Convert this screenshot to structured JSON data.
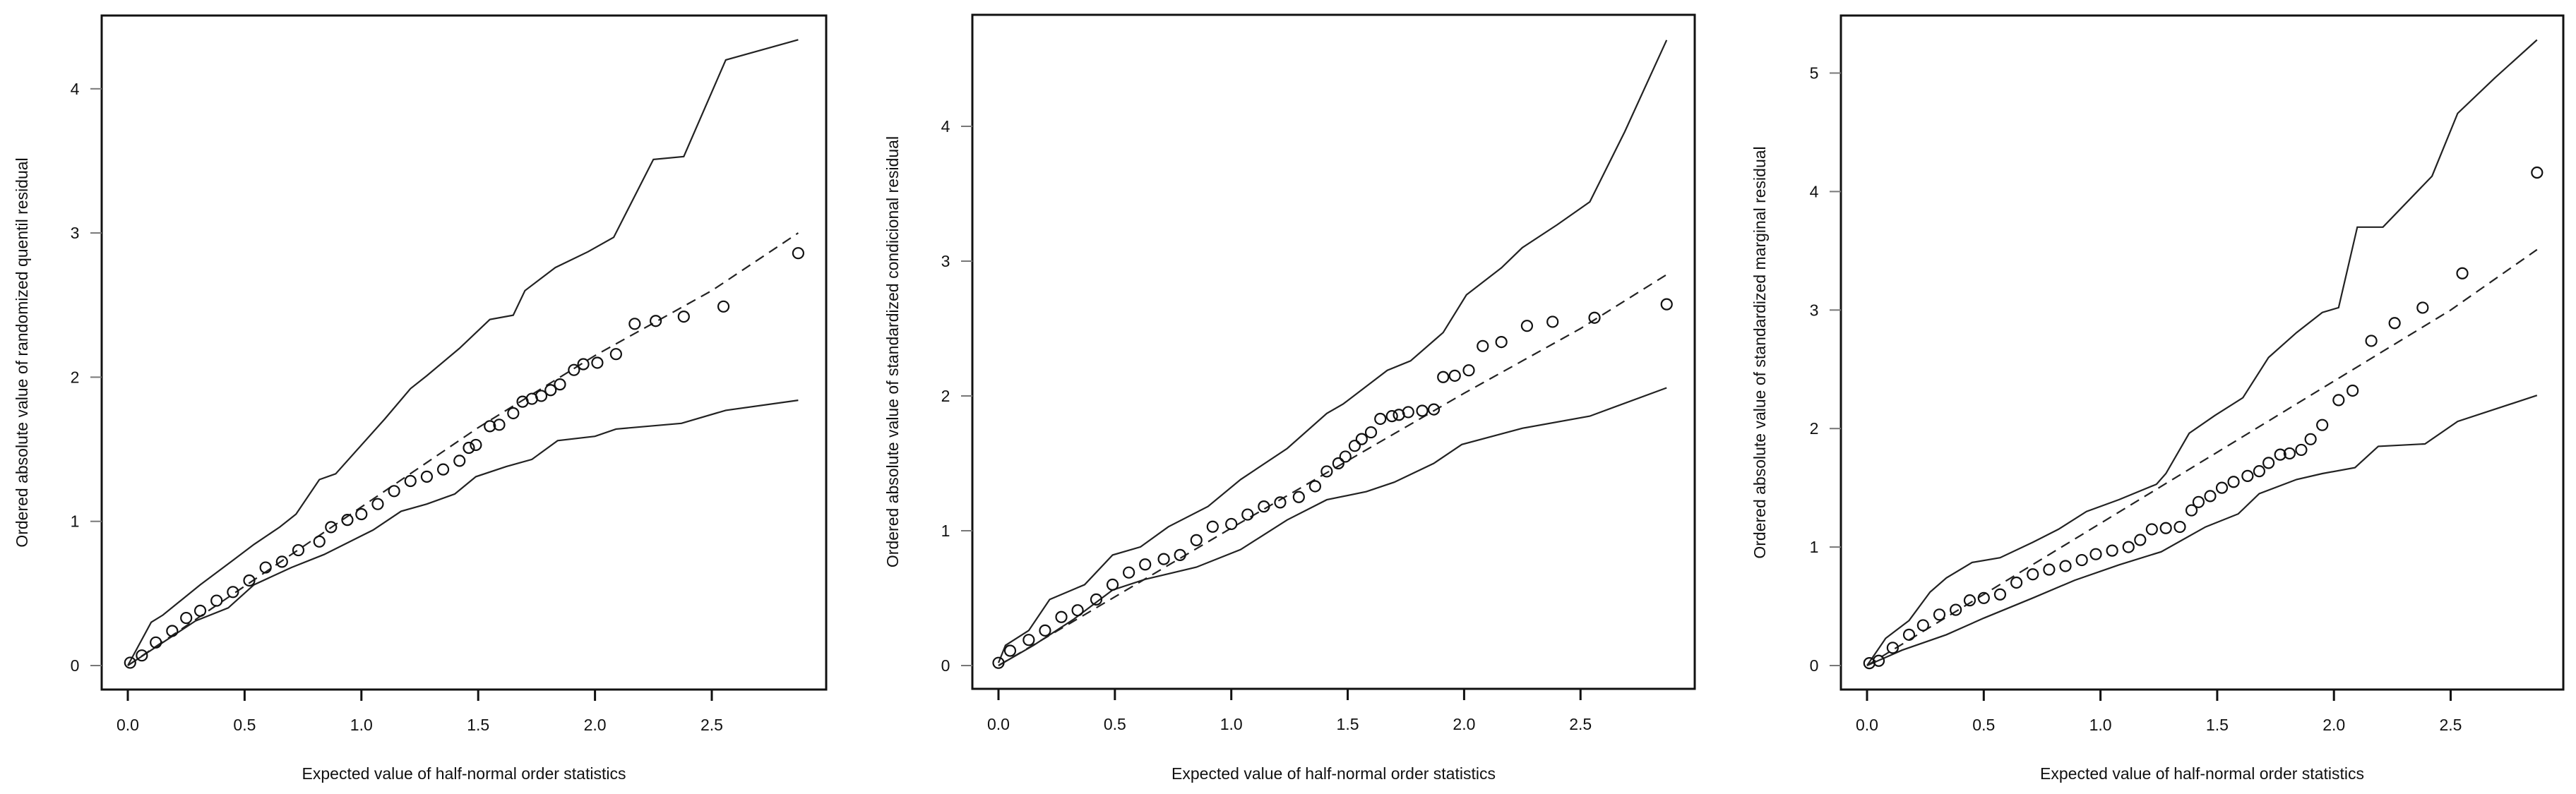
{
  "chart_data": [
    {
      "type": "scatter",
      "xlabel": "Expected value of half-normal order statistics",
      "ylabel": "Ordered absolute value of randomized quentil residual",
      "xlim": [
        0,
        2.9
      ],
      "ylim": [
        0,
        4.4
      ],
      "xticks": [
        "0.0",
        "0.5",
        "1.0",
        "1.5",
        "2.0",
        "2.5"
      ],
      "yticks": [
        "0",
        "1",
        "2",
        "3",
        "4"
      ],
      "grid": false,
      "points": {
        "x": [
          0.01,
          0.06,
          0.12,
          0.19,
          0.25,
          0.31,
          0.38,
          0.45,
          0.52,
          0.59,
          0.66,
          0.73,
          0.82,
          0.87,
          0.94,
          1.0,
          1.07,
          1.14,
          1.21,
          1.28,
          1.35,
          1.42,
          1.46,
          1.49,
          1.55,
          1.59,
          1.65,
          1.69,
          1.73,
          1.77,
          1.81,
          1.85,
          1.91,
          1.95,
          2.01,
          2.09,
          2.17,
          2.26,
          2.38,
          2.55,
          2.87
        ],
        "y": [
          0.02,
          0.07,
          0.16,
          0.24,
          0.33,
          0.38,
          0.45,
          0.51,
          0.59,
          0.68,
          0.72,
          0.8,
          0.86,
          0.96,
          1.01,
          1.05,
          1.12,
          1.21,
          1.28,
          1.31,
          1.36,
          1.42,
          1.51,
          1.53,
          1.66,
          1.67,
          1.75,
          1.83,
          1.85,
          1.87,
          1.91,
          1.95,
          2.05,
          2.09,
          2.1,
          2.16,
          2.37,
          2.39,
          2.42,
          2.49,
          2.86
        ]
      },
      "envelope_upper": {
        "x": [
          0,
          0.1,
          0.15,
          0.31,
          0.45,
          0.54,
          0.65,
          0.72,
          0.82,
          0.89,
          1.1,
          1.21,
          1.28,
          1.42,
          1.55,
          1.65,
          1.7,
          1.83,
          1.97,
          2.08,
          2.25,
          2.38,
          2.56,
          2.87
        ],
        "y": [
          0,
          0.3,
          0.35,
          0.56,
          0.73,
          0.84,
          0.96,
          1.05,
          1.29,
          1.33,
          1.71,
          1.92,
          2.01,
          2.2,
          2.4,
          2.43,
          2.6,
          2.76,
          2.87,
          2.97,
          3.51,
          3.53,
          4.2,
          4.34
        ]
      },
      "envelope_median": {
        "x": [
          0,
          0.5,
          1.0,
          1.5,
          2.0,
          2.5,
          2.87
        ],
        "y": [
          0,
          0.55,
          1.1,
          1.65,
          2.15,
          2.6,
          3.0
        ]
      },
      "envelope_lower": {
        "x": [
          0,
          0.15,
          0.29,
          0.43,
          0.54,
          0.7,
          0.84,
          1.05,
          1.17,
          1.28,
          1.4,
          1.49,
          1.62,
          1.73,
          1.84,
          2.0,
          2.09,
          2.37,
          2.56,
          2.87
        ],
        "y": [
          0,
          0.16,
          0.31,
          0.4,
          0.56,
          0.68,
          0.77,
          0.94,
          1.07,
          1.12,
          1.19,
          1.31,
          1.38,
          1.43,
          1.56,
          1.59,
          1.64,
          1.68,
          1.77,
          1.84
        ]
      }
    },
    {
      "type": "scatter",
      "xlabel": "Expected value of half-normal order statistics",
      "ylabel": "Ordered absolute value of standardized condicional residual",
      "xlim": [
        0,
        2.9
      ],
      "ylim": [
        0,
        4.7
      ],
      "xticks": [
        "0.0",
        "0.5",
        "1.0",
        "1.5",
        "2.0",
        "2.5"
      ],
      "yticks": [
        "0",
        "1",
        "2",
        "3",
        "4"
      ],
      "grid": false,
      "points": {
        "x": [
          0,
          0.05,
          0.13,
          0.2,
          0.27,
          0.34,
          0.42,
          0.49,
          0.56,
          0.63,
          0.71,
          0.78,
          0.85,
          0.92,
          1.0,
          1.07,
          1.14,
          1.21,
          1.29,
          1.36,
          1.41,
          1.46,
          1.49,
          1.53,
          1.56,
          1.6,
          1.64,
          1.69,
          1.72,
          1.76,
          1.82,
          1.87,
          1.91,
          1.96,
          2.02,
          2.08,
          2.16,
          2.27,
          2.38,
          2.56,
          2.87
        ],
        "y": [
          0.02,
          0.11,
          0.19,
          0.26,
          0.36,
          0.41,
          0.49,
          0.6,
          0.69,
          0.75,
          0.79,
          0.82,
          0.93,
          1.03,
          1.05,
          1.12,
          1.18,
          1.21,
          1.25,
          1.33,
          1.44,
          1.5,
          1.55,
          1.63,
          1.68,
          1.73,
          1.83,
          1.85,
          1.86,
          1.88,
          1.89,
          1.9,
          2.14,
          2.15,
          2.19,
          2.37,
          2.4,
          2.52,
          2.55,
          2.58,
          2.68
        ]
      },
      "envelope_upper": {
        "x": [
          0,
          0.03,
          0.13,
          0.22,
          0.37,
          0.49,
          0.61,
          0.73,
          0.9,
          1.04,
          1.24,
          1.41,
          1.48,
          1.67,
          1.77,
          1.91,
          2.01,
          2.16,
          2.25,
          2.4,
          2.54,
          2.69,
          2.87
        ],
        "y": [
          0.02,
          0.15,
          0.26,
          0.49,
          0.6,
          0.82,
          0.88,
          1.03,
          1.18,
          1.38,
          1.61,
          1.87,
          1.94,
          2.19,
          2.26,
          2.47,
          2.75,
          2.95,
          3.1,
          3.27,
          3.44,
          3.96,
          4.64
        ]
      },
      "envelope_median": {
        "x": [
          0,
          1.0,
          1.5,
          2.0,
          2.5,
          2.87
        ],
        "y": [
          0,
          1.02,
          1.52,
          2.02,
          2.5,
          2.9
        ]
      },
      "envelope_lower": {
        "x": [
          0,
          0.15,
          0.32,
          0.49,
          0.63,
          0.85,
          1.04,
          1.24,
          1.41,
          1.58,
          1.7,
          1.87,
          1.99,
          2.25,
          2.54,
          2.87
        ],
        "y": [
          0,
          0.15,
          0.34,
          0.56,
          0.64,
          0.73,
          0.86,
          1.08,
          1.23,
          1.29,
          1.36,
          1.5,
          1.64,
          1.76,
          1.85,
          2.06
        ]
      }
    },
    {
      "type": "scatter",
      "xlabel": "Expected value of half-normal order statistics",
      "ylabel": "Ordered absolute value of standardized marginal residual",
      "xlim": [
        0,
        2.9
      ],
      "ylim": [
        0,
        5.35
      ],
      "xticks": [
        "0.0",
        "0.5",
        "1.0",
        "1.5",
        "2.0",
        "2.5"
      ],
      "yticks": [
        "0",
        "1",
        "2",
        "3",
        "4",
        "5"
      ],
      "grid": false,
      "points": {
        "x": [
          0.01,
          0.05,
          0.11,
          0.18,
          0.24,
          0.31,
          0.38,
          0.44,
          0.5,
          0.57,
          0.64,
          0.71,
          0.78,
          0.85,
          0.92,
          0.98,
          1.05,
          1.12,
          1.17,
          1.22,
          1.28,
          1.34,
          1.39,
          1.42,
          1.47,
          1.52,
          1.57,
          1.63,
          1.68,
          1.72,
          1.77,
          1.81,
          1.86,
          1.9,
          1.95,
          2.02,
          2.08,
          2.16,
          2.26,
          2.38,
          2.55,
          2.87
        ],
        "y": [
          0.02,
          0.04,
          0.15,
          0.26,
          0.34,
          0.43,
          0.47,
          0.55,
          0.57,
          0.6,
          0.7,
          0.77,
          0.81,
          0.84,
          0.89,
          0.94,
          0.97,
          1.0,
          1.06,
          1.15,
          1.16,
          1.17,
          1.31,
          1.38,
          1.43,
          1.5,
          1.55,
          1.6,
          1.64,
          1.71,
          1.78,
          1.79,
          1.82,
          1.91,
          2.03,
          2.24,
          2.32,
          2.74,
          2.89,
          3.02,
          3.31,
          4.16
        ]
      },
      "envelope_upper": {
        "x": [
          0,
          0.08,
          0.18,
          0.27,
          0.34,
          0.45,
          0.57,
          0.71,
          0.82,
          0.94,
          1.08,
          1.24,
          1.28,
          1.38,
          1.49,
          1.61,
          1.72,
          1.84,
          1.95,
          2.02,
          2.1,
          2.21,
          2.42,
          2.53,
          2.69,
          2.87
        ],
        "y": [
          0,
          0.23,
          0.38,
          0.62,
          0.74,
          0.87,
          0.91,
          1.04,
          1.15,
          1.3,
          1.4,
          1.53,
          1.62,
          1.96,
          2.11,
          2.26,
          2.6,
          2.81,
          2.98,
          3.02,
          3.7,
          3.7,
          4.13,
          4.66,
          4.96,
          5.28
        ]
      },
      "envelope_median": {
        "x": [
          0,
          1.0,
          1.5,
          2.0,
          2.5,
          2.87
        ],
        "y": [
          0,
          1.2,
          1.8,
          2.4,
          3.0,
          3.51
        ]
      },
      "envelope_lower": {
        "x": [
          0,
          0.15,
          0.34,
          0.5,
          0.71,
          0.89,
          1.08,
          1.26,
          1.45,
          1.59,
          1.68,
          1.84,
          1.95,
          2.09,
          2.19,
          2.39,
          2.53,
          2.87
        ],
        "y": [
          0,
          0.13,
          0.26,
          0.4,
          0.57,
          0.72,
          0.85,
          0.96,
          1.17,
          1.28,
          1.45,
          1.57,
          1.62,
          1.67,
          1.85,
          1.87,
          2.06,
          2.28
        ]
      }
    }
  ]
}
